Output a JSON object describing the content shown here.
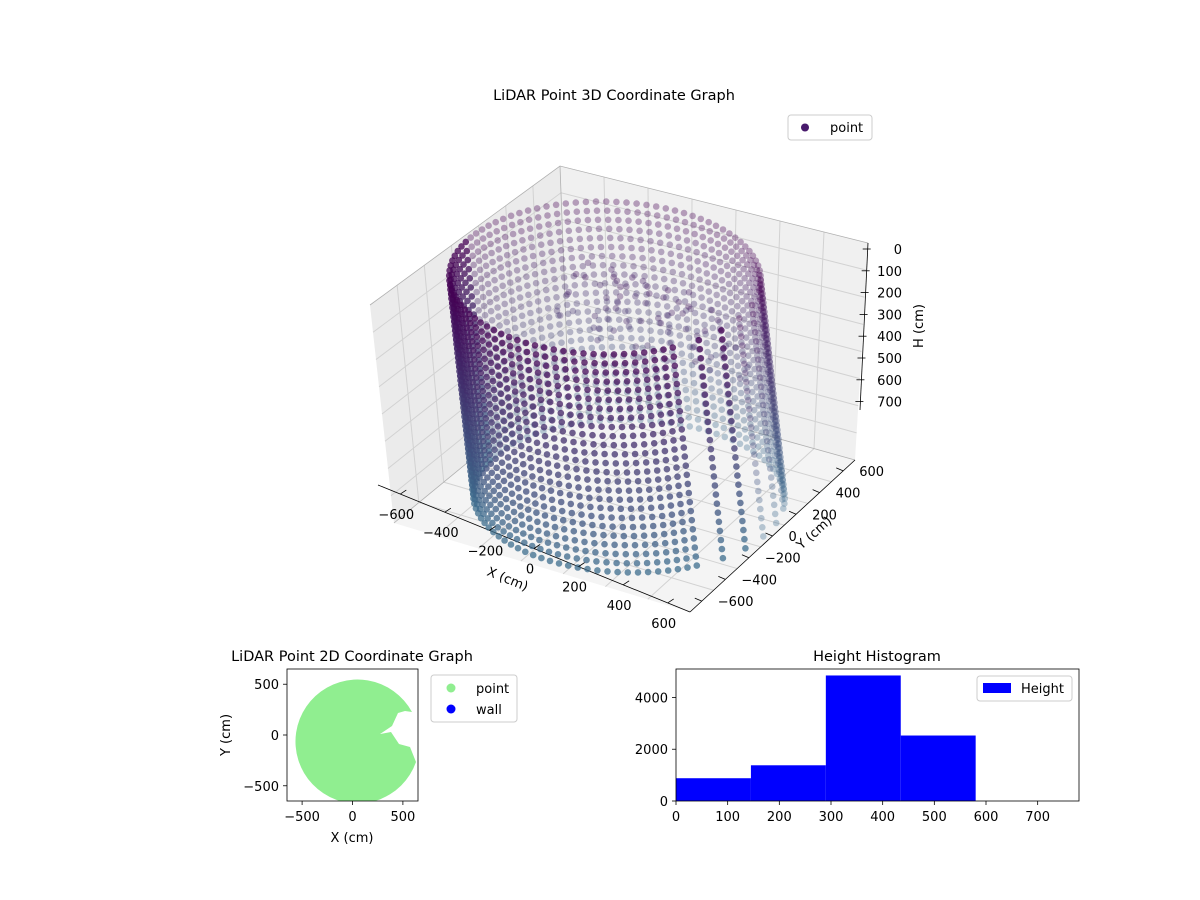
{
  "chart_data": [
    {
      "type": "scatter",
      "title": "LiDAR Point 3D Coordinate Graph",
      "xlabel": "X (cm)",
      "ylabel": "Y (cm)",
      "zlabel": "H (cm)",
      "x_ticks": [
        "−600",
        "−400",
        "−200",
        "0",
        "200",
        "400",
        "600"
      ],
      "y_ticks": [
        "−600",
        "−400",
        "−200",
        "0",
        "200",
        "400",
        "600"
      ],
      "z_ticks": [
        "0",
        "100",
        "200",
        "300",
        "400",
        "500",
        "600",
        "700"
      ],
      "xlim": [
        -650,
        650
      ],
      "ylim": [
        -650,
        650
      ],
      "zlim": [
        0,
        780
      ],
      "z_inverted": true,
      "legend": {
        "position": "top-right",
        "entries": [
          {
            "name": "point",
            "color": "#481a6c"
          }
        ]
      },
      "colors": {
        "top": "#440154",
        "bottom": "#3e6e8e"
      },
      "description_data": {
        "shape": "cylindrical wall of points, radius about 600 cm, heights 0 to 780 cm, with an opening toward +X and a cluster of points hanging near the top toward +Y"
      }
    },
    {
      "type": "scatter",
      "title": "LiDAR Point 2D Coordinate Graph",
      "xlabel": "X (cm)",
      "ylabel": "Y (cm)",
      "x_ticks": [
        "−500",
        "0",
        "500"
      ],
      "y_ticks": [
        "−500",
        "0",
        "500"
      ],
      "xlim": [
        -650,
        650
      ],
      "ylim": [
        -650,
        650
      ],
      "legend": {
        "position": "outside-right",
        "entries": [
          {
            "name": "point",
            "color": "#90ee90"
          },
          {
            "name": "wall",
            "color": "#0000ff"
          }
        ]
      }
    },
    {
      "type": "bar",
      "title": "Height Histogram",
      "xlabel": "",
      "ylabel": "",
      "bins": [
        {
          "x0": 0,
          "x1": 145,
          "count": 880
        },
        {
          "x0": 145,
          "x1": 290,
          "count": 1380
        },
        {
          "x0": 290,
          "x1": 435,
          "count": 4850
        },
        {
          "x0": 435,
          "x1": 580,
          "count": 2530
        }
      ],
      "x_ticks": [
        "0",
        "100",
        "200",
        "300",
        "400",
        "500",
        "600",
        "700"
      ],
      "y_ticks": [
        "0",
        "2000",
        "4000"
      ],
      "xlim": [
        0,
        780
      ],
      "ylim": [
        0,
        5100
      ],
      "bar_color": "#0000ff",
      "legend": {
        "position": "top-right",
        "entries": [
          {
            "name": "Height",
            "color": "#0000ff"
          }
        ]
      }
    }
  ]
}
